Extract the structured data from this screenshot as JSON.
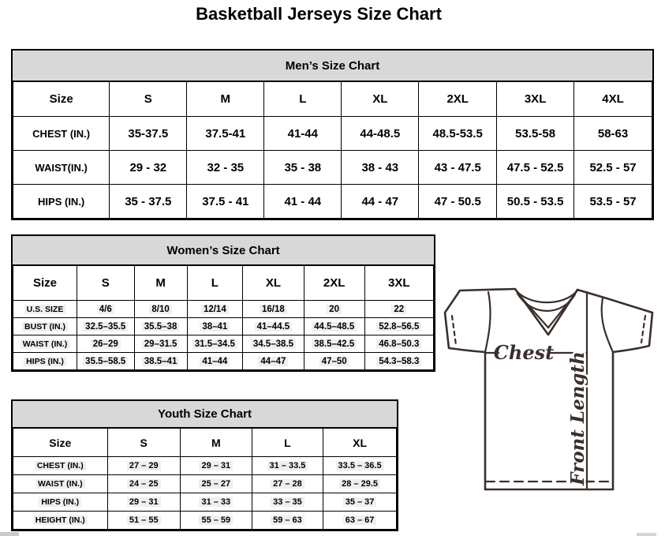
{
  "page": {
    "title": "Basketball Jerseys Size Chart"
  },
  "colors": {
    "chart_title_bg": "#d8d8d8",
    "border": "#000000",
    "value_highlight": "#efefef",
    "jersey_stroke": "#3a2f2b",
    "scrollbar_fragment": "#c9c9c9"
  },
  "mens": {
    "title": "Men’s Size Chart",
    "columns": [
      "Size",
      "S",
      "M",
      "L",
      "XL",
      "2XL",
      "3XL",
      "4XL"
    ],
    "rows": [
      {
        "label": "CHEST (IN.)",
        "values": [
          "35-37.5",
          "37.5-41",
          "41-44",
          "44-48.5",
          "48.5-53.5",
          "53.5-58",
          "58-63"
        ]
      },
      {
        "label": "WAIST(IN.)",
        "values": [
          "29 - 32",
          "32 - 35",
          "35 - 38",
          "38 - 43",
          "43 - 47.5",
          "47.5 - 52.5",
          "52.5 - 57"
        ]
      },
      {
        "label": "HIPS (IN.)",
        "values": [
          "35 - 37.5",
          "37.5 - 41",
          "41 - 44",
          "44 - 47",
          "47 - 50.5",
          "50.5 - 53.5",
          "53.5 - 57"
        ]
      }
    ]
  },
  "womens": {
    "title": "Women’s Size Chart",
    "columns": [
      "Size",
      "S",
      "M",
      "L",
      "XL",
      "2XL",
      "3XL"
    ],
    "rows": [
      {
        "label": "U.S. SIZE",
        "values": [
          "4/6",
          "8/10",
          "12/14",
          "16/18",
          "20",
          "22"
        ]
      },
      {
        "label": "BUST (IN.)",
        "values": [
          "32.5–35.5",
          "35.5–38",
          "38–41",
          "41–44.5",
          "44.5–48.5",
          "52.8–56.5"
        ]
      },
      {
        "label": "WAIST (IN.)",
        "values": [
          "26–29",
          "29–31.5",
          "31.5–34.5",
          "34.5–38.5",
          "38.5–42.5",
          "46.8–50.3"
        ]
      },
      {
        "label": "HIPS (IN.)",
        "values": [
          "35.5–58.5",
          "38.5–41",
          "41–44",
          "44–47",
          "47–50",
          "54.3–58.3"
        ]
      }
    ]
  },
  "youth": {
    "title": "Youth Size Chart",
    "columns": [
      "Size",
      "S",
      "M",
      "L",
      "XL"
    ],
    "rows": [
      {
        "label": "CHEST (IN.)",
        "values": [
          "27 – 29",
          "29 – 31",
          "31 – 33.5",
          "33.5 – 36.5"
        ]
      },
      {
        "label": "WAIST (IN.)",
        "values": [
          "24 – 25",
          "25 – 27",
          "27 – 28",
          "28 – 29.5"
        ]
      },
      {
        "label": "HIPS (IN.)",
        "values": [
          "29 – 31",
          "31 – 33",
          "33 – 35",
          "35 – 37"
        ]
      },
      {
        "label": "HEIGHT (IN.)",
        "values": [
          "51 – 55",
          "55 – 59",
          "59 – 63",
          "63 – 67"
        ]
      }
    ]
  },
  "diagram": {
    "chest_label": "Chest",
    "front_length_label": "Front Length"
  }
}
